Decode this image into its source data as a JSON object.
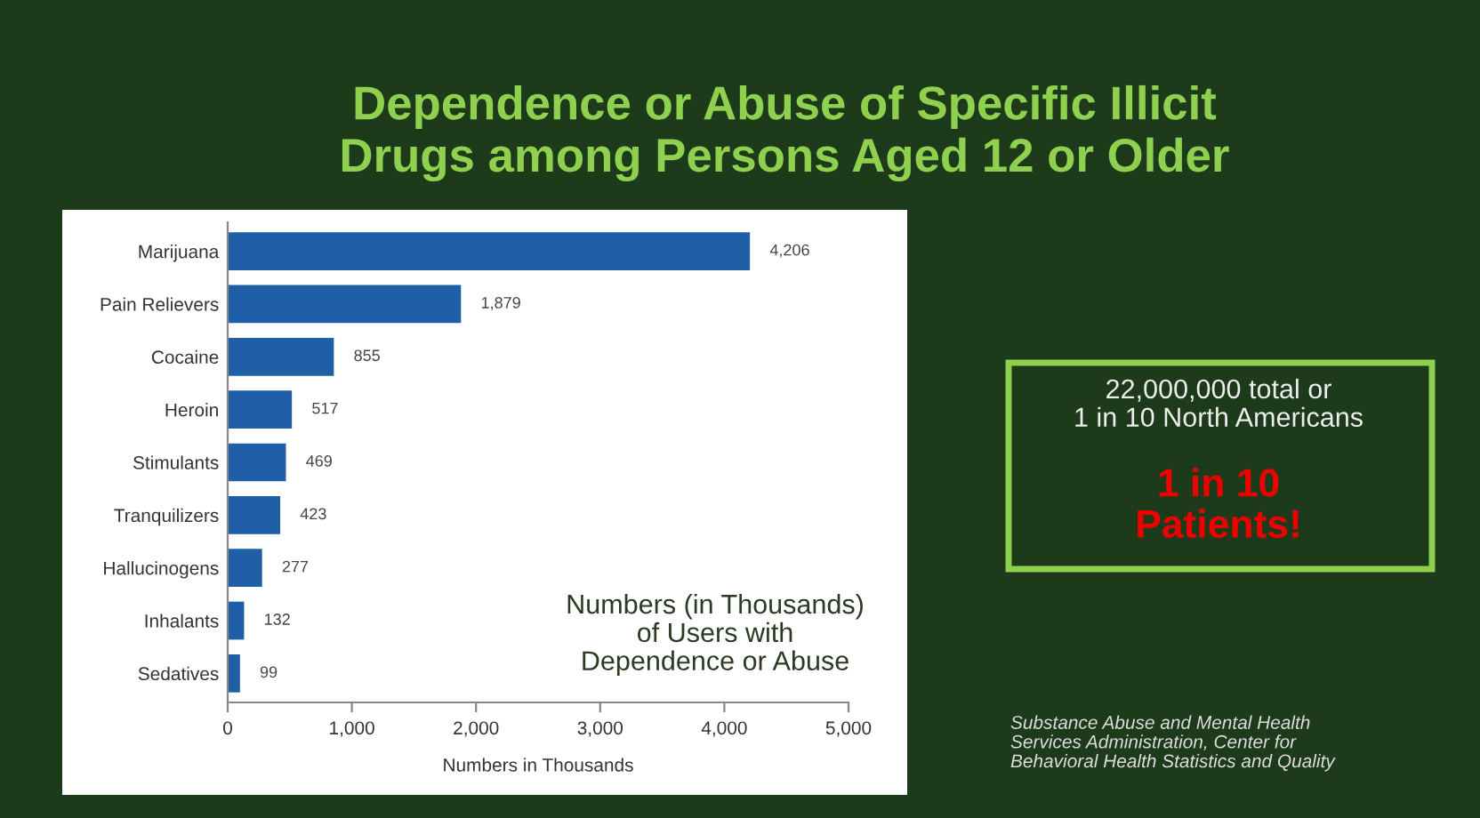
{
  "chart_data": {
    "type": "bar",
    "orientation": "horizontal",
    "title": "Dependence or Abuse of Specific Illicit\nDrugs among Persons Aged 12 or Older",
    "xlabel": "Numbers in Thousands",
    "categories": [
      "Marijuana",
      "Pain Relievers",
      "Cocaine",
      "Heroin",
      "Stimulants",
      "Tranquilizers",
      "Hallucinogens",
      "Inhalants",
      "Sedatives"
    ],
    "values": [
      4206,
      1879,
      855,
      517,
      469,
      423,
      277,
      132,
      99
    ],
    "value_labels": [
      "4,206",
      "1,879",
      "855",
      "517",
      "469",
      "423",
      "277",
      "132",
      "99"
    ],
    "color": "#1f5fa8",
    "xlim": [
      0,
      5000
    ],
    "xticks": [
      0,
      {
        "value": 1000,
        "label": "1,000"
      },
      {
        "value": 2000,
        "label": "2,000"
      },
      {
        "value": 3000,
        "label": "3,000"
      },
      {
        "value": 4000,
        "label": "4,000"
      },
      {
        "value": 5000,
        "label": "5,000"
      }
    ],
    "grid": false,
    "legend": false,
    "annotations": [
      "Numbers (in Thousands)\nof Users with\nDependence or Abuse",
      "22,000,000 total or\n1 in 10 North Americans",
      "1 in 10\nPatients!",
      "Substance Abuse and Mental Health\nServices Administration, Center for\nBehavioral Health Statistics and Quality"
    ]
  }
}
